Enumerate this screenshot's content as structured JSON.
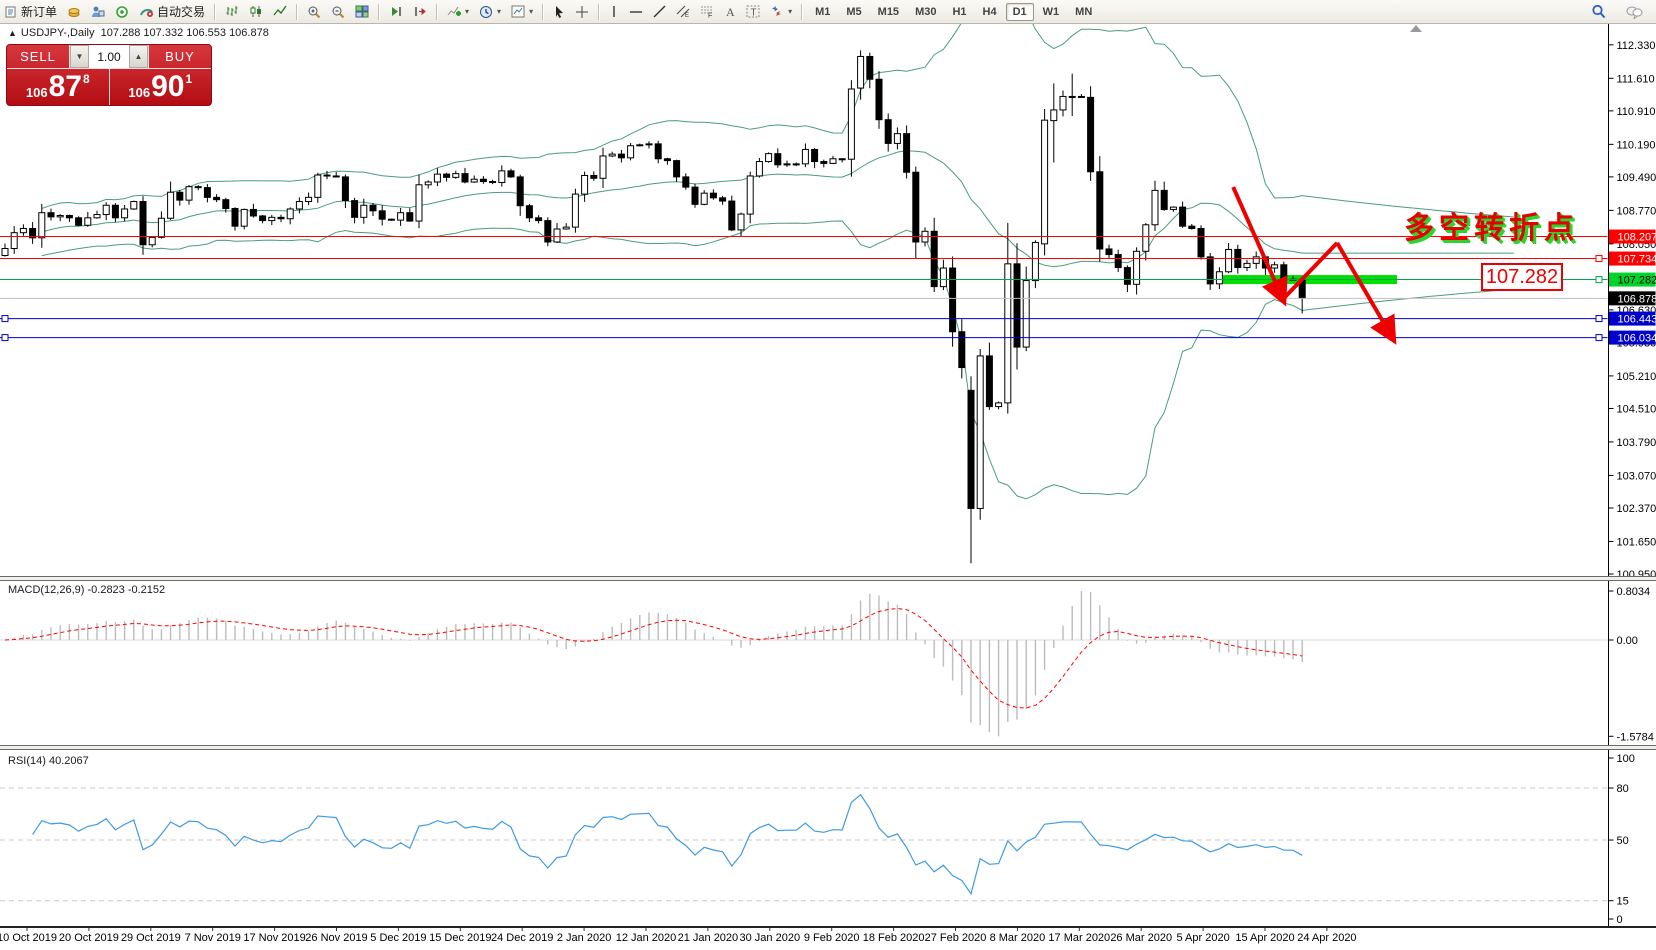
{
  "toolbar": {
    "groups": [
      {
        "buttons": [
          {
            "name": "new-order-button",
            "icon": "neworder",
            "label": "新订单"
          },
          {
            "name": "market-watch-button",
            "icon": "coins",
            "label": ""
          },
          {
            "name": "navigator-button",
            "icon": "person",
            "label": ""
          },
          {
            "name": "strategy-button",
            "icon": "signal",
            "label": ""
          },
          {
            "name": "auto-trading-button",
            "icon": "robot",
            "label": "自动交易"
          }
        ]
      },
      {
        "buttons": [
          {
            "name": "bar-chart-button",
            "icon": "bars",
            "label": ""
          },
          {
            "name": "candlestick-chart-button",
            "icon": "candles",
            "label": ""
          },
          {
            "name": "line-chart-button",
            "icon": "line",
            "label": ""
          }
        ]
      },
      {
        "buttons": [
          {
            "name": "zoom-in-button",
            "icon": "zoomin",
            "label": ""
          },
          {
            "name": "zoom-out-button",
            "icon": "zoomout",
            "label": ""
          },
          {
            "name": "tile-windows-button",
            "icon": "tiles",
            "label": ""
          }
        ]
      },
      {
        "buttons": [
          {
            "name": "auto-scroll-button",
            "icon": "autoscroll",
            "label": ""
          },
          {
            "name": "chart-shift-button",
            "icon": "shift",
            "label": ""
          }
        ]
      },
      {
        "buttons": [
          {
            "name": "indicators-button",
            "icon": "indicator",
            "label": "",
            "caret": true
          },
          {
            "name": "periods-button",
            "icon": "clock",
            "label": "",
            "caret": true
          },
          {
            "name": "templates-button",
            "icon": "template",
            "label": "",
            "caret": true
          }
        ]
      },
      {
        "buttons": [
          {
            "name": "cursor-button",
            "icon": "cursor",
            "label": ""
          },
          {
            "name": "crosshair-button",
            "icon": "crosshair",
            "label": ""
          }
        ]
      },
      {
        "buttons": [
          {
            "name": "vertical-line-button",
            "icon": "vline",
            "label": ""
          },
          {
            "name": "horizontal-line-button",
            "icon": "hline",
            "label": ""
          },
          {
            "name": "trendline-button",
            "icon": "tline",
            "label": ""
          },
          {
            "name": "equidistant-channel-button",
            "icon": "channel",
            "label": ""
          },
          {
            "name": "fibonacci-button",
            "icon": "fibo",
            "label": ""
          },
          {
            "name": "text-button",
            "icon": "textA",
            "label": ""
          },
          {
            "name": "text-label-button",
            "icon": "labelT",
            "label": ""
          },
          {
            "name": "arrows-button",
            "icon": "arrows",
            "label": "",
            "caret": true
          }
        ]
      }
    ],
    "timeframes": [
      "M1",
      "M5",
      "M15",
      "M30",
      "H1",
      "H4",
      "D1",
      "W1",
      "MN"
    ],
    "active_timeframe": "D1",
    "right_icons": [
      {
        "name": "search-button",
        "icon": "search"
      },
      {
        "name": "chat-button",
        "icon": "chat"
      }
    ]
  },
  "chart_window": {
    "collapse_arrow": "▲",
    "title_symbol": "USDJPY-,Daily",
    "title_ohlc": "107.288 107.332 106.553 106.878"
  },
  "one_click": {
    "sell_label": "SELL",
    "buy_label": "BUY",
    "volume": "1.00",
    "sell_prefix": "106",
    "sell_big": "87",
    "sell_sup": "8",
    "buy_prefix": "106",
    "buy_big": "90",
    "buy_sup": "1"
  },
  "annotations": {
    "turning_point_text": "多空转折点",
    "price_box_label": "107.282"
  },
  "colors": {
    "band_green": "#4a9e78",
    "line_red": "#ff0000",
    "line_green": "#00a651",
    "line_blue": "#0000cc",
    "bid_silver": "#c0c0c0",
    "badge_green_bg": "#00d42a",
    "badge_black_bg": "#000000",
    "thick_bar_green": "#00e000",
    "arrow_red": "#ee0000",
    "macd_histogram": "#bcbcbc",
    "macd_signal": "#ff0000",
    "rsi_blue": "#3f9be0",
    "panel_red": "#c8151c"
  },
  "chart_data": {
    "type": "candlestick",
    "symbol": "USDJPY",
    "timeframe": "Daily",
    "last_ohlc": {
      "open": 107.288,
      "high": 107.332,
      "low": 106.553,
      "close": 106.878
    },
    "x_labels": [
      "10 Oct 2019",
      "20 Oct 2019",
      "29 Oct 2019",
      "7 Nov 2019",
      "17 Nov 2019",
      "26 Nov 2019",
      "5 Dec 2019",
      "15 Dec 2019",
      "24 Dec 2019",
      "2 Jan 2020",
      "12 Jan 2020",
      "21 Jan 2020",
      "30 Jan 2020",
      "9 Feb 2020",
      "18 Feb 2020",
      "27 Feb 2020",
      "8 Mar 2020",
      "17 Mar 2020",
      "26 Mar 2020",
      "5 Apr 2020",
      "15 Apr 2020",
      "24 Apr 2020"
    ],
    "y_ticks": [
      112.33,
      111.61,
      110.91,
      110.19,
      109.49,
      108.77,
      108.05,
      106.63,
      105.93,
      105.21,
      104.51,
      103.79,
      103.07,
      102.37,
      101.65,
      100.95
    ],
    "closes": [
      107.95,
      108.29,
      108.38,
      108.18,
      108.72,
      108.63,
      108.66,
      108.61,
      108.45,
      108.61,
      108.68,
      108.88,
      108.61,
      108.8,
      108.96,
      108.03,
      108.19,
      108.6,
      109.16,
      108.99,
      109.28,
      109.26,
      109.05,
      109.0,
      108.81,
      108.43,
      108.79,
      108.65,
      108.55,
      108.62,
      108.59,
      108.8,
      108.96,
      109.05,
      109.53,
      109.51,
      109.49,
      108.98,
      108.62,
      108.88,
      108.76,
      108.58,
      108.56,
      108.72,
      108.54,
      109.32,
      109.38,
      109.55,
      109.48,
      109.56,
      109.38,
      109.44,
      109.39,
      109.37,
      109.62,
      109.49,
      108.87,
      108.61,
      108.55,
      108.09,
      108.37,
      108.41,
      109.12,
      109.52,
      109.46,
      109.94,
      109.98,
      109.9,
      110.16,
      110.18,
      110.2,
      109.88,
      109.84,
      109.49,
      109.27,
      108.9,
      109.14,
      109.04,
      108.97,
      108.35,
      108.69,
      109.51,
      109.82,
      109.99,
      109.75,
      109.77,
      109.77,
      110.08,
      109.82,
      109.78,
      109.88,
      109.87,
      111.38,
      112.08,
      111.59,
      110.72,
      110.21,
      110.42,
      109.59,
      108.09,
      108.32,
      107.13,
      107.53,
      106.16,
      105.39,
      102.36,
      105.64,
      104.55,
      104.63,
      107.62,
      105.83,
      107.26,
      108.08,
      110.71,
      110.93,
      111.22,
      111.22,
      111.2,
      109.6,
      107.94,
      107.82,
      107.54,
      107.18,
      107.89,
      108.46,
      109.2,
      108.79,
      108.84,
      108.43,
      108.38,
      107.77,
      107.19,
      107.45,
      107.93,
      107.54,
      107.63,
      107.77,
      107.53,
      107.6,
      107.29,
      107.29,
      106.878
    ],
    "first_open": 107.8,
    "candle_overrides": {
      "93": [
        111.4,
        112.21,
        111.15,
        112.08
      ],
      "105": [
        104.9,
        105.2,
        101.18,
        102.36
      ],
      "109": [
        104.63,
        108.5,
        104.4,
        107.62
      ],
      "113": [
        108.05,
        110.95,
        107.8,
        110.71
      ],
      "114": [
        110.7,
        111.5,
        109.8,
        110.93
      ],
      "116": [
        111.2,
        111.71,
        110.8,
        111.22
      ],
      "141": [
        107.288,
        107.332,
        106.553,
        106.878
      ]
    },
    "horizontal_lines": [
      {
        "price": 108.207,
        "label": "108.207",
        "color": "#ff0000",
        "badge_bg": "#ff0000",
        "badge_fg": "#ffffff",
        "handles": "none"
      },
      {
        "price": 107.734,
        "label": "107.734",
        "color": "#ff0000",
        "badge_bg": "#ff0000",
        "badge_fg": "#ffffff",
        "handles": "right"
      },
      {
        "price": 107.282,
        "label": "107.282",
        "color": "#00a651",
        "badge_bg": "#00d42a",
        "badge_fg": "#000000",
        "handles": "right"
      },
      {
        "price": 106.878,
        "label": "106.878",
        "color": "#c0c0c0",
        "badge_bg": "#000000",
        "badge_fg": "#ffffff",
        "handles": "none"
      },
      {
        "price": 106.443,
        "label": "106.443",
        "color": "#0000cc",
        "badge_bg": "#0000cc",
        "badge_fg": "#ffffff",
        "handles": "both"
      },
      {
        "price": 106.034,
        "label": "106.034",
        "color": "#0000cc",
        "badge_bg": "#0000cc",
        "badge_fg": "#ffffff",
        "handles": "both"
      }
    ],
    "thick_green_bar": {
      "price": 107.282,
      "x1_bar": 132,
      "x2_bar": 151.3
    },
    "trend_arrows": [
      {
        "from_bar": 133.5,
        "from_price": 109.27,
        "to_bar": 138.9,
        "to_price": 106.86,
        "head": true
      },
      {
        "from_bar": 138.9,
        "from_price": 106.86,
        "to_bar": 144.8,
        "to_price": 108.07,
        "head": false
      },
      {
        "from_bar": 144.8,
        "from_price": 108.07,
        "to_bar": 150.8,
        "to_price": 106.03,
        "head": true
      }
    ],
    "indicators": {
      "bollinger": {
        "period": 20,
        "deviation": 2
      },
      "macd": {
        "label": "MACD(12,26,9)",
        "current_values": "-0.2823 -0.2152",
        "scale_max": "0.8034",
        "scale_zero": "0.00",
        "scale_min": "-1.5784",
        "scale_max_v": 0.8034,
        "scale_min_v": -1.5784
      },
      "rsi": {
        "label": "RSI(14)",
        "current_value": "40.2067",
        "levels": [
          80,
          50,
          15
        ],
        "scale_labels": [
          100,
          80,
          50,
          15,
          0
        ]
      }
    }
  }
}
